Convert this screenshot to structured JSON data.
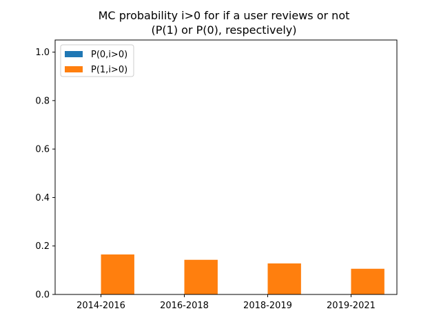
{
  "chart_data": {
    "type": "bar",
    "title": "MC probability i>0 for if a user reviews or not",
    "subtitle": "(P(1) or P(0), respectively)",
    "xlabel": "",
    "ylabel": "",
    "categories": [
      "2014-2016",
      "2016-2018",
      "2018-2019",
      "2019-2021"
    ],
    "series": [
      {
        "name": "P(0,i>0)",
        "color": "#1f77b4",
        "values": [
          0,
          0,
          0,
          0
        ]
      },
      {
        "name": "P(1,i>0)",
        "color": "#ff7f0e",
        "values": [
          0.165,
          0.143,
          0.128,
          0.106
        ]
      }
    ],
    "ylim": [
      0,
      1.05
    ],
    "yticks": [
      0.0,
      0.2,
      0.4,
      0.6,
      0.8,
      1.0
    ],
    "ytick_labels": [
      "0.0",
      "0.2",
      "0.4",
      "0.6",
      "0.8",
      "1.0"
    ],
    "grid": false,
    "legend_position": "top-left"
  }
}
